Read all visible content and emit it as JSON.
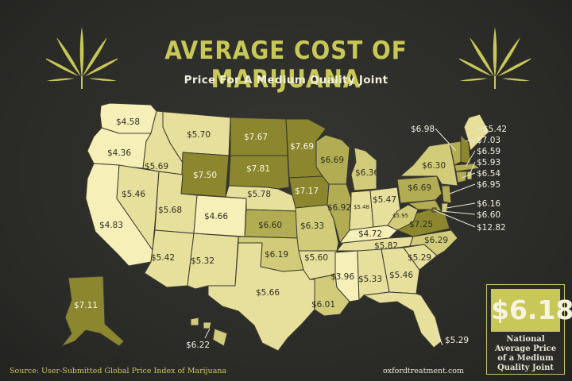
{
  "header": {
    "title": "AVERAGE COST OF MARIJUANA",
    "subtitle": "Price For A Medium Quality Joint"
  },
  "national": {
    "value": "$6.18",
    "label": "National Average Price of a Medium Quality Joint"
  },
  "footer": {
    "source": "Source: User-Submitted Global Price Index of Marijuana",
    "site": "oxfordtreatment.com"
  },
  "colors": {
    "background": "#2b2b28",
    "accent": "#c8c858",
    "price_lowest": "#f6f0b8",
    "price_low": "#e6e09c",
    "price_mid": "#d2cc7a",
    "price_high": "#b2ac52",
    "price_highest": "#8c862e"
  },
  "icons": [
    "cannabis-leaf-icon"
  ],
  "states": [
    {
      "id": "WA",
      "price": "$4.58"
    },
    {
      "id": "OR",
      "price": "$4.36"
    },
    {
      "id": "CA",
      "price": "$4.83"
    },
    {
      "id": "NV",
      "price": "$5.46"
    },
    {
      "id": "ID",
      "price": "$5.69"
    },
    {
      "id": "MT",
      "price": "$5.70"
    },
    {
      "id": "WY",
      "price": "$7.50"
    },
    {
      "id": "UT",
      "price": "$5.68"
    },
    {
      "id": "AZ",
      "price": "$5.42"
    },
    {
      "id": "CO",
      "price": "$4.66"
    },
    {
      "id": "NM",
      "price": "$5.32"
    },
    {
      "id": "ND",
      "price": "$7.67"
    },
    {
      "id": "SD",
      "price": "$7.81"
    },
    {
      "id": "NE",
      "price": "$5.78"
    },
    {
      "id": "KS",
      "price": "$6.60"
    },
    {
      "id": "OK",
      "price": "$6.19"
    },
    {
      "id": "TX",
      "price": "$5.66"
    },
    {
      "id": "MN",
      "price": "$7.69"
    },
    {
      "id": "IA",
      "price": "$7.17"
    },
    {
      "id": "MO",
      "price": "$6.33"
    },
    {
      "id": "AR",
      "price": "$5.60"
    },
    {
      "id": "LA",
      "price": "$6.01"
    },
    {
      "id": "WI",
      "price": "$6.69"
    },
    {
      "id": "IL",
      "price": "$6.92"
    },
    {
      "id": "MI",
      "price": "$6.36"
    },
    {
      "id": "IN",
      "price": "$5.48"
    },
    {
      "id": "OH",
      "price": "$5.47"
    },
    {
      "id": "KY",
      "price": "$4.72"
    },
    {
      "id": "TN",
      "price": "$5.82"
    },
    {
      "id": "MS",
      "price": "$3.96"
    },
    {
      "id": "AL",
      "price": "$5.33"
    },
    {
      "id": "GA",
      "price": "$5.46"
    },
    {
      "id": "FL",
      "price": "$5.29"
    },
    {
      "id": "SC",
      "price": "$5.29"
    },
    {
      "id": "NC",
      "price": "$6.29"
    },
    {
      "id": "VA",
      "price": "$7.25"
    },
    {
      "id": "WV",
      "price": "$5.95"
    },
    {
      "id": "PA",
      "price": "$6.69"
    },
    {
      "id": "NY",
      "price": "$6.30"
    },
    {
      "id": "AK",
      "price": "$7.11"
    },
    {
      "id": "HI",
      "price": "$6.22"
    },
    {
      "id": "VT",
      "price": "$6.98"
    },
    {
      "id": "ME",
      "price": "$5.42"
    },
    {
      "id": "NH",
      "price": "$7.03"
    },
    {
      "id": "MA",
      "price": "$6.59"
    },
    {
      "id": "RI",
      "price": "$5.93"
    },
    {
      "id": "CT",
      "price": "$6.54"
    },
    {
      "id": "NJ",
      "price": "$6.95"
    },
    {
      "id": "DE",
      "price": "$6.16"
    },
    {
      "id": "MD",
      "price": "$6.60"
    },
    {
      "id": "DC",
      "price": "$12.82"
    }
  ]
}
